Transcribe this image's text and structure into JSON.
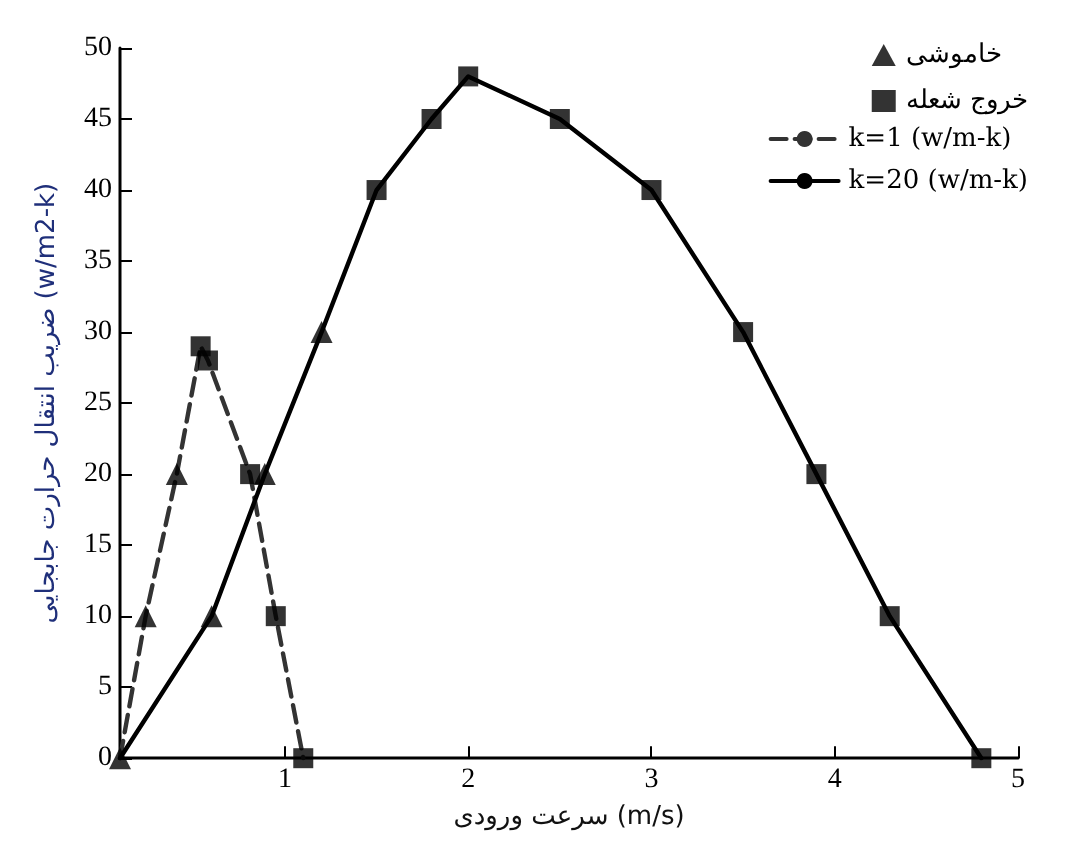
{
  "chart_data": {
    "type": "line",
    "xlabel": "سرعت ورودی (m/s)",
    "ylabel": "ضریب انتقال حرارت جابجایی (w/m2-k)",
    "xlim": [
      0.1,
      5
    ],
    "xticks": [
      1,
      2,
      3,
      4,
      5
    ],
    "ylim": [
      0,
      50
    ],
    "yticks": [
      0,
      5,
      10,
      15,
      20,
      25,
      30,
      35,
      40,
      45,
      50
    ],
    "grid": false,
    "legend": "top right",
    "series": [
      {
        "name": "خاموشی",
        "type": "scatter",
        "marker": "triangle",
        "color": "#000000",
        "x": [
          0.1,
          0.24,
          0.41,
          0.6,
          0.89,
          1.2
        ],
        "values": [
          0,
          10,
          20,
          10,
          20,
          30
        ]
      },
      {
        "name": "خروج شعله",
        "type": "scatter",
        "marker": "square",
        "color": "#000000",
        "x": [
          0.54,
          0.58,
          0.81,
          0.95,
          1.1,
          1.5,
          1.8,
          2,
          2.5,
          3,
          3.5,
          3.9,
          4.3,
          4.8
        ],
        "values": [
          29,
          28,
          20,
          10,
          0,
          40,
          45,
          48,
          45,
          40,
          30,
          20,
          10,
          0
        ]
      },
      {
        "name": "k=1 (w/m-k)",
        "type": "line",
        "marker": "none",
        "line_style": "dashed",
        "color": "#333333",
        "x": [
          0.1,
          0.24,
          0.41,
          0.54,
          0.58,
          0.81,
          0.95,
          1.1
        ],
        "values": [
          0,
          10,
          20,
          29,
          28,
          20,
          10,
          0
        ]
      },
      {
        "name": "k=20 (w/m-k)",
        "type": "line",
        "marker": "none",
        "line_style": "solid",
        "color": "#000000",
        "x": [
          0.1,
          0.6,
          0.89,
          1.2,
          1.5,
          1.8,
          2,
          2.5,
          3,
          3.5,
          3.9,
          4.3,
          4.8
        ],
        "values": [
          0,
          10,
          20,
          30,
          40,
          45,
          48,
          45,
          40,
          30,
          20,
          10,
          0
        ]
      }
    ]
  }
}
